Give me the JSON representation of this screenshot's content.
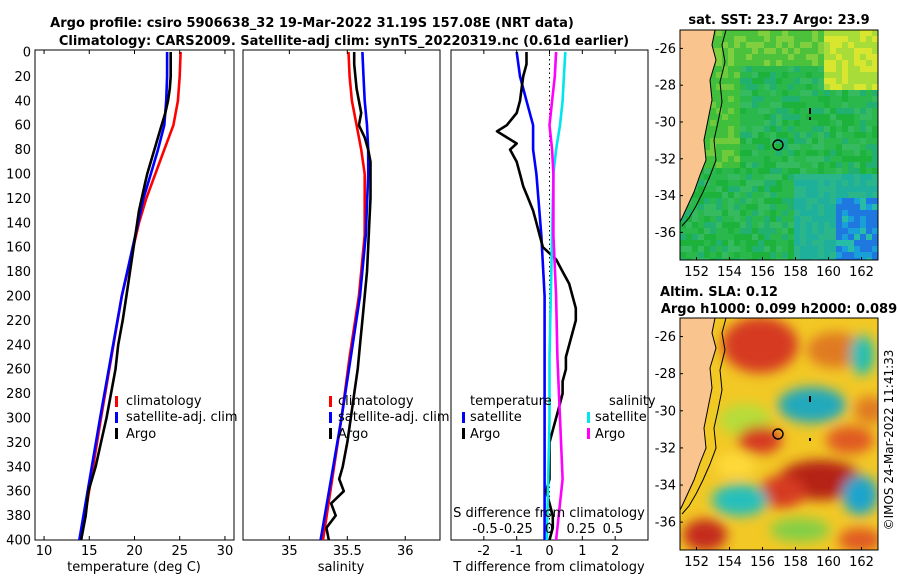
{
  "titles": {
    "line1": "Argo profile: csiro 5906638_32 19-Mar-2022 31.19S 157.08E (NRT data)",
    "line2": "Climatology: CARS2009. Satellite-adj clim: synTS_20220319.nc (0.61d earlier)",
    "sst_title": "sat. SST: 23.7 Argo: 23.9",
    "sla_title1": "Altim. SLA: 0.12",
    "sla_title2": "Argo h1000: 0.099 h2000: 0.089",
    "credit": "©IMOS 24-Mar-2022 11:41:33"
  },
  "colors": {
    "climatology": "#ff0000",
    "satellite": "#0000ff",
    "argo": "#000000",
    "sal_satellite": "#00e5ee",
    "sal_diff": "#ff00ff",
    "land": "#f9c48e"
  },
  "legends": {
    "temp": [
      "climatology",
      "satellite-adj. clim",
      "Argo"
    ],
    "sal": [
      "climatology",
      "satellite-adj. clim",
      "Argo"
    ],
    "diff": {
      "temperature": "temperature",
      "salinity": "salinity",
      "satellite": "satellite",
      "argo": "Argo",
      "s_axis_label": "S difference from climatology",
      "s_ticks": [
        "-0.5",
        "-0.25",
        "0",
        "0.25",
        "0.5"
      ]
    }
  },
  "chart_data": [
    {
      "type": "line",
      "name": "temperature",
      "xlabel": "temperature (deg C)",
      "ylabel": "",
      "xlim": [
        9,
        31
      ],
      "ylim": [
        0,
        400
      ],
      "xticks": [
        10,
        15,
        20,
        25,
        30
      ],
      "yticks": [
        0,
        20,
        40,
        60,
        80,
        100,
        120,
        140,
        160,
        180,
        200,
        220,
        240,
        260,
        280,
        300,
        320,
        340,
        360,
        380,
        400
      ],
      "series": [
        {
          "name": "climatology",
          "color": "#ff0000",
          "depth": [
            0,
            20,
            40,
            60,
            80,
            100,
            120,
            140,
            200,
            300,
            400
          ],
          "values": [
            25.1,
            25.0,
            24.8,
            24.3,
            23.3,
            22.3,
            21.3,
            20.5,
            18.6,
            16.3,
            14.1
          ]
        },
        {
          "name": "satellite-adj. clim",
          "color": "#0000ff",
          "depth": [
            0,
            20,
            40,
            60,
            80,
            100,
            120,
            140,
            200,
            300,
            400
          ],
          "values": [
            23.6,
            23.6,
            23.5,
            23.3,
            22.6,
            21.8,
            21.0,
            20.4,
            18.6,
            16.2,
            13.9
          ]
        },
        {
          "name": "Argo",
          "color": "#000000",
          "depth": [
            0,
            10,
            20,
            30,
            40,
            50,
            60,
            70,
            80,
            90,
            100,
            110,
            120,
            130,
            140,
            150,
            160,
            180,
            200,
            220,
            240,
            260,
            280,
            300,
            320,
            340,
            360,
            380,
            400
          ],
          "values": [
            24.0,
            24.0,
            24.0,
            23.9,
            23.7,
            23.4,
            23.0,
            22.6,
            22.2,
            21.8,
            21.4,
            21.1,
            20.8,
            20.5,
            20.3,
            20.1,
            19.9,
            19.5,
            19.1,
            18.7,
            18.2,
            17.9,
            17.4,
            16.9,
            16.3,
            15.7,
            14.9,
            14.6,
            14.1
          ]
        }
      ]
    },
    {
      "type": "line",
      "name": "salinity",
      "xlabel": "salinity",
      "ylabel": "",
      "xlim": [
        34.6,
        36.3
      ],
      "ylim": [
        0,
        400
      ],
      "xticks": [
        35,
        35.5,
        36
      ],
      "series": [
        {
          "name": "climatology",
          "color": "#ff0000",
          "depth": [
            0,
            20,
            40,
            60,
            80,
            100,
            150,
            200,
            250,
            300,
            350,
            400
          ],
          "values": [
            35.51,
            35.52,
            35.54,
            35.58,
            35.62,
            35.65,
            35.65,
            35.6,
            35.52,
            35.45,
            35.37,
            35.29
          ]
        },
        {
          "name": "satellite-adj. clim",
          "color": "#0000ff",
          "depth": [
            0,
            20,
            40,
            60,
            80,
            100,
            150,
            200,
            250,
            300,
            350,
            400
          ],
          "values": [
            35.63,
            35.64,
            35.65,
            35.67,
            35.68,
            35.68,
            35.66,
            35.61,
            35.53,
            35.45,
            35.36,
            35.27
          ]
        },
        {
          "name": "Argo",
          "color": "#000000",
          "depth": [
            0,
            10,
            20,
            30,
            40,
            50,
            60,
            70,
            80,
            90,
            100,
            120,
            140,
            160,
            180,
            200,
            220,
            240,
            260,
            280,
            300,
            320,
            340,
            350,
            360,
            370,
            380,
            390,
            400
          ],
          "values": [
            35.56,
            35.56,
            35.57,
            35.58,
            35.6,
            35.62,
            35.6,
            35.65,
            35.68,
            35.7,
            35.7,
            35.7,
            35.69,
            35.68,
            35.67,
            35.65,
            35.63,
            35.61,
            35.59,
            35.56,
            35.53,
            35.5,
            35.46,
            35.43,
            35.47,
            35.36,
            35.4,
            35.32,
            35.34
          ]
        }
      ]
    },
    {
      "type": "line",
      "name": "differences",
      "xlabel": "T difference from climatology",
      "ylabel": "",
      "xlim": [
        -3.0,
        3.0
      ],
      "ylim": [
        0,
        400
      ],
      "xticks": [
        -2,
        -1,
        0,
        1,
        2
      ],
      "s_scale_per_degT": 0.25,
      "series": [
        {
          "name": "temperature satellite",
          "color": "#0000ff",
          "depth": [
            0,
            20,
            40,
            60,
            80,
            100,
            150,
            200,
            250,
            300,
            350,
            400
          ],
          "values": [
            -1.0,
            -0.9,
            -0.7,
            -0.5,
            -0.5,
            -0.4,
            -0.25,
            -0.15,
            -0.15,
            -0.15,
            -0.15,
            -0.15
          ]
        },
        {
          "name": "temperature Argo",
          "color": "#000000",
          "depth": [
            0,
            10,
            20,
            30,
            40,
            50,
            60,
            65,
            70,
            75,
            80,
            85,
            90,
            100,
            110,
            120,
            130,
            140,
            150,
            160,
            170,
            180,
            190,
            200,
            210,
            220,
            230,
            240,
            250,
            260,
            270,
            280,
            290,
            300,
            310,
            320,
            330,
            340,
            350,
            360,
            370,
            380,
            390,
            400
          ],
          "values": [
            -0.7,
            -0.7,
            -0.8,
            -0.85,
            -0.9,
            -1.0,
            -1.3,
            -1.6,
            -1.3,
            -1.0,
            -1.2,
            -1.1,
            -1.0,
            -0.9,
            -0.8,
            -0.65,
            -0.5,
            -0.4,
            -0.3,
            -0.2,
            0.2,
            0.4,
            0.6,
            0.7,
            0.8,
            0.8,
            0.7,
            0.6,
            0.5,
            0.5,
            0.4,
            0.4,
            0.3,
            0.2,
            0.1,
            0.0,
            0.0,
            0.0,
            0.0,
            -0.1,
            0.0,
            0.1,
            0.1,
            0.0
          ]
        },
        {
          "name": "salinity satellite",
          "color": "#00e5ee",
          "depth": [
            0,
            20,
            40,
            60,
            80,
            100,
            150,
            200,
            250,
            300,
            350,
            400
          ],
          "values": [
            0.12,
            0.11,
            0.1,
            0.08,
            0.05,
            0.03,
            0.02,
            0.01,
            0.0,
            0.0,
            -0.01,
            -0.02
          ]
        },
        {
          "name": "salinity Argo",
          "color": "#ff00ff",
          "depth": [
            0,
            20,
            40,
            60,
            80,
            100,
            150,
            200,
            250,
            300,
            350,
            400
          ],
          "values": [
            0.05,
            0.04,
            0.02,
            0.0,
            0.02,
            0.03,
            0.03,
            0.05,
            0.06,
            0.08,
            0.1,
            0.05
          ]
        }
      ]
    },
    {
      "type": "heatmap",
      "name": "satellite SST map",
      "title": "sat. SST: 23.7 Argo: 23.9",
      "xticks": [
        152,
        154,
        156,
        158,
        160,
        162
      ],
      "yticks": [
        -26,
        -28,
        -30,
        -32,
        -34,
        -36
      ],
      "xlim": [
        151,
        163
      ],
      "ylim": [
        -37.5,
        -25
      ],
      "argo_position": [
        157.08,
        -31.19
      ]
    },
    {
      "type": "heatmap",
      "name": "altimetry SLA map",
      "title": "Altim. SLA: 0.12",
      "xticks": [
        152,
        154,
        156,
        158,
        160,
        162
      ],
      "yticks": [
        -26,
        -28,
        -30,
        -32,
        -34,
        -36
      ],
      "xlim": [
        151,
        163
      ],
      "ylim": [
        -37.5,
        -25
      ],
      "argo_position": [
        157.08,
        -31.19
      ]
    }
  ]
}
